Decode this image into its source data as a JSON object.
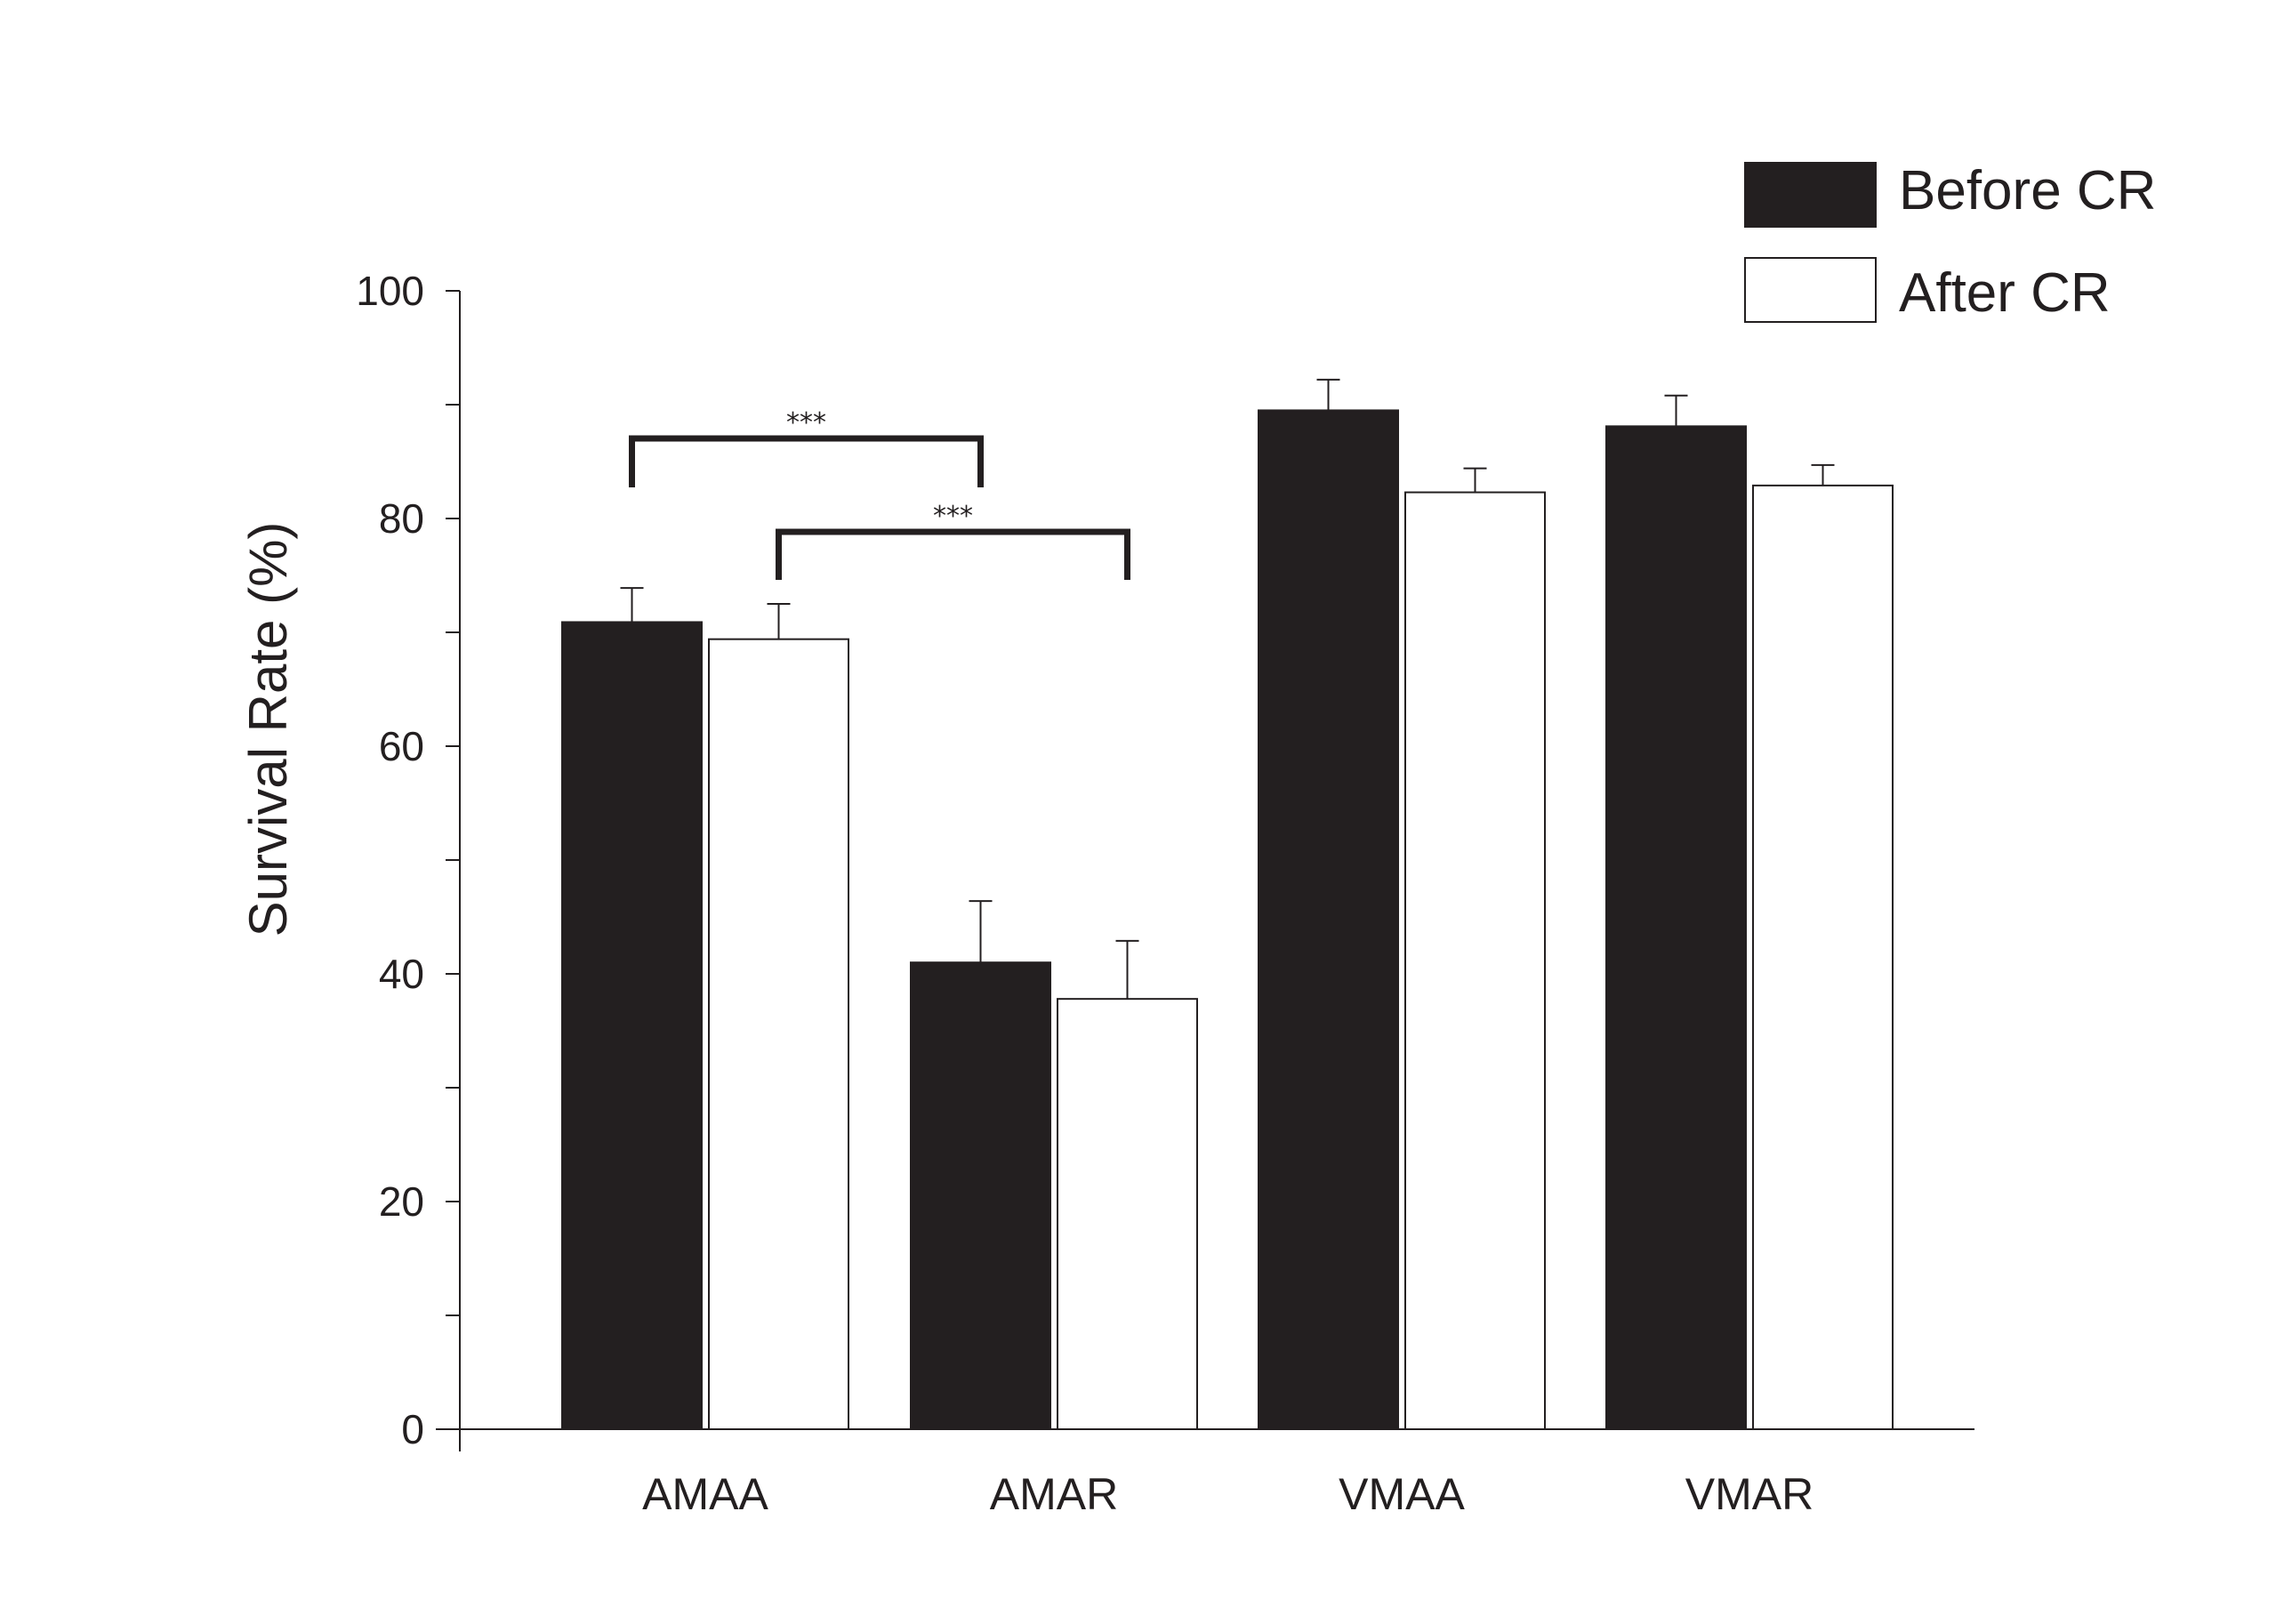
{
  "chart_data": {
    "type": "bar",
    "categories": [
      "AMAA",
      "AMAR",
      "VMAA",
      "VMAR"
    ],
    "series": [
      {
        "name": "Before CR",
        "color": "#231f20",
        "values": [
          70.9,
          41.0,
          89.5,
          88.1
        ],
        "errors": [
          3.0,
          5.4,
          2.7,
          2.7
        ]
      },
      {
        "name": "After CR",
        "color": "#ffffff",
        "values": [
          69.4,
          37.8,
          82.3,
          82.9
        ],
        "errors": [
          3.1,
          5.1,
          2.1,
          1.8
        ]
      }
    ],
    "title": "",
    "xlabel": "",
    "ylabel": "Survival Rate (%)",
    "ylim": [
      0,
      100
    ],
    "yticks": [
      "0",
      "20",
      "40",
      "60",
      "80",
      "100"
    ],
    "minor_tick_step": 10,
    "grid": false,
    "legend_position": "top-right",
    "annotations": [
      {
        "text": "***",
        "from": {
          "category": "AMAA",
          "series": "Before CR"
        },
        "to": {
          "category": "AMAR",
          "series": "Before CR"
        }
      },
      {
        "text": "***",
        "from": {
          "category": "AMAA",
          "series": "After CR"
        },
        "to": {
          "category": "AMAR",
          "series": "After CR"
        }
      }
    ]
  }
}
